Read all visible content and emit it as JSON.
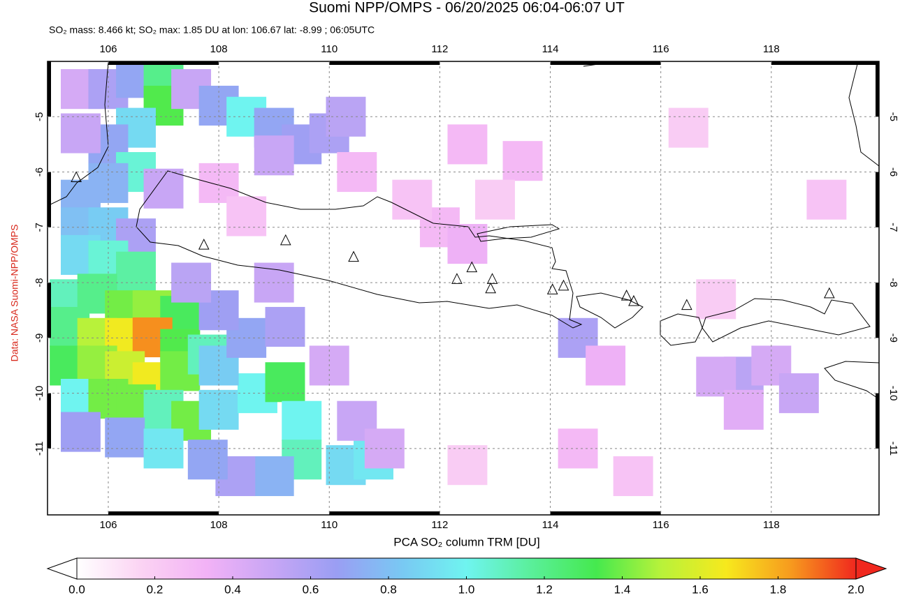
{
  "chart_data": {
    "type": "map",
    "title": "Suomi NPP/OMPS - 06/20/2025 06:04-06:07 UT",
    "subtitle": "SO₂ mass: 8.466 kt; SO₂ max: 1.85 DU at lon: 106.67 lat: -8.99 ; 06:05UTC",
    "source": "Data: NASA Suomi-NPP/OMPS",
    "colorbar_label": "PCA SO₂ column TRM [DU]",
    "xlim": [
      104.9,
      119.95
    ],
    "ylim": [
      -12.2,
      -4
    ],
    "xticks": [
      106,
      108,
      110,
      112,
      114,
      116,
      118
    ],
    "yticks": [
      -5,
      -6,
      -7,
      -8,
      -9,
      -10,
      -11
    ],
    "grid": true,
    "clim": [
      0,
      2
    ],
    "cticks": [
      {
        "value": 0,
        "label": "0.0"
      },
      0.2,
      0.4,
      0.6,
      0.8,
      {
        "value": 1,
        "label": "1.0"
      },
      1.2,
      1.4,
      1.6,
      1.8,
      {
        "value": 2,
        "label": "2.0"
      }
    ],
    "colormap": [
      "#ffffff",
      "#fbd3f3",
      "#f2b2f6",
      "#c8a6f5",
      "#9a9ef3",
      "#79c8f3",
      "#6ff4f0",
      "#5aef9a",
      "#45e94e",
      "#b8f23a",
      "#f7e91d",
      "#f79a1e",
      "#f0281e"
    ],
    "cells": [
      [
        105.5,
        -4.5,
        0.45
      ],
      [
        106,
        -4.5,
        0.6
      ],
      [
        106.5,
        -4.3,
        0.7
      ],
      [
        107,
        -4.3,
        1.2
      ],
      [
        107,
        -4.8,
        1.35
      ],
      [
        107.5,
        -4.5,
        0.5
      ],
      [
        108,
        -4.8,
        0.7
      ],
      [
        108.5,
        -5,
        1.0
      ],
      [
        106.5,
        -5.2,
        0.9
      ],
      [
        106,
        -5.5,
        0.7
      ],
      [
        105.5,
        -5.3,
        0.5
      ],
      [
        109,
        -5.2,
        0.7
      ],
      [
        109.5,
        -5.5,
        0.65
      ],
      [
        110,
        -5.3,
        0.6
      ],
      [
        110.3,
        -5,
        0.55
      ],
      [
        109,
        -5.7,
        0.5
      ],
      [
        106.5,
        -6,
        1.05
      ],
      [
        106,
        -6.2,
        0.75
      ],
      [
        105.5,
        -6.5,
        0.75
      ],
      [
        107,
        -6.3,
        0.5
      ],
      [
        105.5,
        -7,
        0.8
      ],
      [
        106,
        -7,
        0.85
      ],
      [
        106.5,
        -7.2,
        0.6
      ],
      [
        105.5,
        -7.5,
        0.9
      ],
      [
        106,
        -7.6,
        1.05
      ],
      [
        106.5,
        -7.8,
        1.15
      ],
      [
        105.3,
        -8.3,
        1.1
      ],
      [
        105.8,
        -8.2,
        1.2
      ],
      [
        106.3,
        -8.5,
        1.4
      ],
      [
        106.8,
        -8.5,
        1.45
      ],
      [
        107.3,
        -8.6,
        1.3
      ],
      [
        105.3,
        -8.8,
        1.2
      ],
      [
        105.8,
        -9,
        1.5
      ],
      [
        106.3,
        -9,
        1.65
      ],
      [
        106.8,
        -8.99,
        1.85
      ],
      [
        107.3,
        -9.2,
        1.35
      ],
      [
        105.3,
        -9.5,
        1.3
      ],
      [
        105.8,
        -9.5,
        1.45
      ],
      [
        106.3,
        -9.6,
        1.55
      ],
      [
        106.8,
        -9.8,
        1.65
      ],
      [
        107.3,
        -9.6,
        1.4
      ],
      [
        107.8,
        -9.3,
        1.1
      ],
      [
        105.5,
        -10.1,
        1.0
      ],
      [
        106,
        -10.1,
        1.4
      ],
      [
        106.5,
        -10.2,
        1.4
      ],
      [
        107,
        -10.3,
        1.1
      ],
      [
        107.5,
        -10.5,
        1.4
      ],
      [
        105.5,
        -10.7,
        0.65
      ],
      [
        106.3,
        -10.8,
        0.7
      ],
      [
        107,
        -11,
        0.95
      ],
      [
        108,
        -10.3,
        0.9
      ],
      [
        108.7,
        -10,
        1.0
      ],
      [
        109.2,
        -9.8,
        1.3
      ],
      [
        108,
        -9.5,
        0.85
      ],
      [
        108.5,
        -9,
        0.7
      ],
      [
        108,
        -8.5,
        0.65
      ],
      [
        107.5,
        -8,
        0.55
      ],
      [
        109.5,
        -10.5,
        1.0
      ],
      [
        109.5,
        -11.2,
        1.1
      ],
      [
        110.3,
        -11.3,
        0.9
      ],
      [
        110.8,
        -11.2,
        0.95
      ],
      [
        109,
        -11.5,
        0.75
      ],
      [
        108.3,
        -11.5,
        0.6
      ],
      [
        107.8,
        -11.2,
        0.7
      ],
      [
        109,
        -8,
        0.5
      ],
      [
        109.2,
        -8.8,
        0.6
      ],
      [
        110,
        -9.5,
        0.45
      ],
      [
        110.5,
        -10.5,
        0.5
      ],
      [
        111,
        -11,
        0.45
      ],
      [
        112,
        -7,
        0.3
      ],
      [
        112.5,
        -7.3,
        0.35
      ],
      [
        114.5,
        -9,
        0.6
      ],
      [
        115,
        -9.5,
        0.35
      ],
      [
        117.5,
        -9.7,
        0.55
      ],
      [
        117,
        -9.7,
        0.45
      ],
      [
        118,
        -9.5,
        0.45
      ],
      [
        118.5,
        -10,
        0.5
      ],
      [
        117.5,
        -10.3,
        0.4
      ],
      [
        112.5,
        -5.5,
        0.3
      ],
      [
        113.5,
        -5.8,
        0.3
      ],
      [
        110.5,
        -6,
        0.3
      ],
      [
        116.5,
        -5.2,
        0.2
      ],
      [
        119,
        -6.5,
        0.25
      ],
      [
        111.5,
        -6.5,
        0.25
      ],
      [
        113,
        -6.5,
        0.2
      ],
      [
        108,
        -6.2,
        0.3
      ],
      [
        108.5,
        -6.8,
        0.25
      ],
      [
        114.5,
        -11,
        0.3
      ],
      [
        115.5,
        -11.5,
        0.25
      ],
      [
        112.5,
        -11.3,
        0.2
      ],
      [
        117,
        -8.3,
        0.2
      ]
    ],
    "volcanoes": [
      [
        105.42,
        -6.1
      ],
      [
        107.73,
        -7.32
      ],
      [
        109.21,
        -7.24
      ],
      [
        110.44,
        -7.54
      ],
      [
        112.31,
        -7.94
      ],
      [
        112.58,
        -7.73
      ],
      [
        112.95,
        -7.94
      ],
      [
        112.92,
        -8.11
      ],
      [
        114.04,
        -8.13
      ],
      [
        114.24,
        -8.06
      ],
      [
        115.38,
        -8.24
      ],
      [
        115.51,
        -8.34
      ],
      [
        116.47,
        -8.41
      ],
      [
        119.05,
        -8.2
      ]
    ]
  }
}
